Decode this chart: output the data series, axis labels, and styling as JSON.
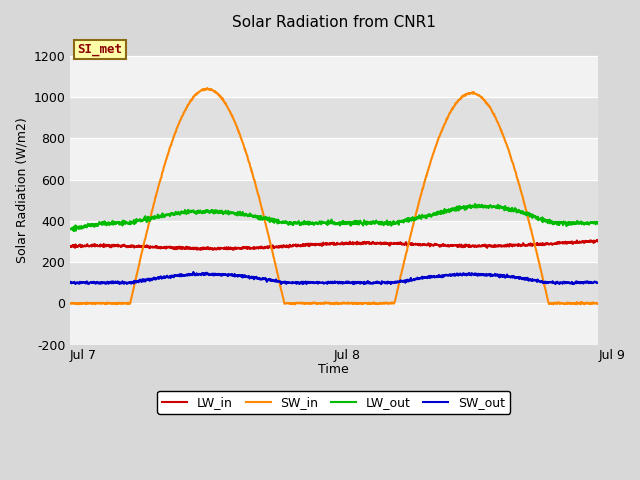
{
  "title": "Solar Radiation from CNR1",
  "xlabel": "Time",
  "ylabel": "Solar Radiation (W/m2)",
  "ylim": [
    -200,
    1300
  ],
  "yticks": [
    -200,
    0,
    200,
    400,
    600,
    800,
    1000,
    1200
  ],
  "xtick_labels": [
    "Jul 7",
    "Jul 8",
    "Jul 9"
  ],
  "annotation_text": "SI_met",
  "annotation_bg": "#ffffaa",
  "annotation_border": "#8B6914",
  "annotation_text_color": "#8B0000",
  "band_colors": [
    "#f2f2f2",
    "#e0e0e0"
  ],
  "line_colors": {
    "LW_in": "#cc0000",
    "SW_in": "#ff8800",
    "LW_out": "#00bb00",
    "SW_out": "#0000cc"
  },
  "legend_labels": [
    "LW_in",
    "SW_in",
    "LW_out",
    "SW_out"
  ]
}
